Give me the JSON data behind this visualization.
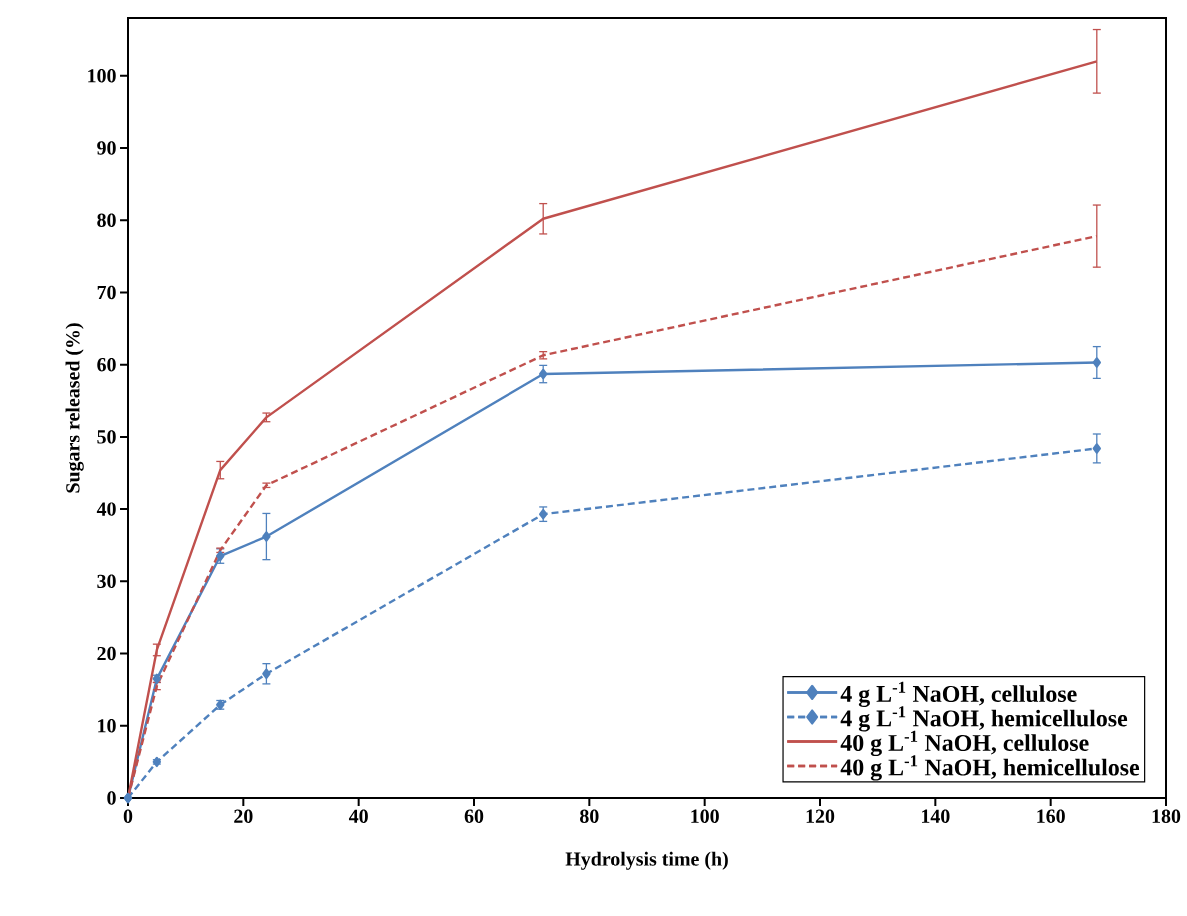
{
  "chart_data": {
    "type": "line",
    "xlabel": "Hydrolysis time (h)",
    "ylabel": "Sugars released (%)",
    "x": [
      0,
      5,
      16,
      24,
      72,
      168
    ],
    "series": [
      {
        "name": "4 g L$^{-1}$ NaOH, cellulose",
        "color": "#4f81bd",
        "values": [
          0,
          16.5,
          33.5,
          36.2,
          58.7,
          60.3
        ],
        "errors": [
          null,
          0.5,
          1,
          3.2,
          1.2,
          2.2
        ],
        "marker": "diamond",
        "line_style": "solid"
      },
      {
        "name": "4 g L$^{-1}$ NaOH, hemicellulose",
        "color": "#4f81bd",
        "values": [
          0,
          5,
          12.9,
          17.2,
          39.3,
          48.4
        ],
        "errors": [
          null,
          0.3,
          0.6,
          1.4,
          1,
          2
        ],
        "marker": "diamond",
        "line_style": "dashed"
      },
      {
        "name": "40 g L$^{-1}$ NaOH, cellulose",
        "color": "#c0504d",
        "values": [
          0,
          20.5,
          45.4,
          52.7,
          80.2,
          102
        ],
        "errors": [
          null,
          0.8,
          1.2,
          0.6,
          2.1,
          4.4
        ],
        "marker": "none",
        "line_style": "solid"
      },
      {
        "name": "40 g L$^{-1}$ NaOH, hemicellulose",
        "color": "#c0504d",
        "values": [
          0,
          15.5,
          34.3,
          43.3,
          61.3,
          77.8
        ],
        "errors": [
          null,
          0.5,
          0.3,
          0.3,
          0.5,
          4.3
        ],
        "marker": "none",
        "line_style": "dashed"
      }
    ],
    "xlim": [
      0,
      180
    ],
    "xticks": [
      0,
      20,
      40,
      60,
      80,
      100,
      120,
      140,
      160,
      180
    ],
    "ylim": [
      0,
      108
    ],
    "yticks": [
      0,
      10,
      20,
      30,
      40,
      50,
      60,
      70,
      80,
      90,
      100
    ],
    "grid": false,
    "legend": "bottom right"
  }
}
